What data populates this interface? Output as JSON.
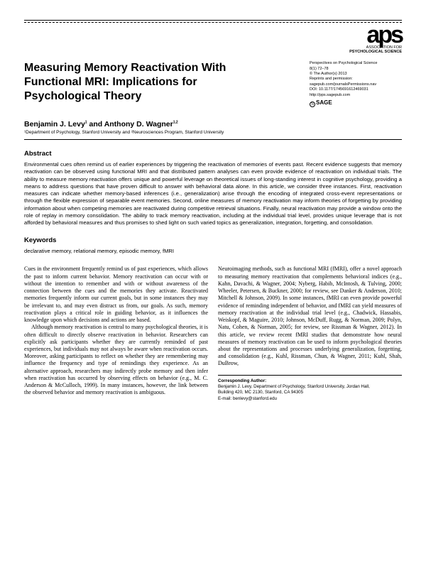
{
  "logo": {
    "main": "aps",
    "line1": "ASSOCIATION FOR",
    "line2": "PSYCHOLOGICAL SCIENCE"
  },
  "title": "Measuring Memory Reactivation With Functional MRI: Implications for Psychological Theory",
  "meta": {
    "journal": "Perspectives on Psychological Science",
    "issue": "8(1) 72–78",
    "copyright": "© The Author(s) 2013",
    "perm1": "Reprints and permission:",
    "perm2": "sagepub.com/journalsPermissions.nav",
    "doi": "DOI: 10.1177/1745691612469031",
    "url": "http://pps.sagepub.com",
    "publisher": "SAGE"
  },
  "authors": "Benjamin J. Levy¹ and Anthony D. Wagner¹,²",
  "affiliation": "¹Department of Psychology, Stanford University and ²Neurosciences Program, Stanford University",
  "abstract_h": "Abstract",
  "abstract": "Environmental cues often remind us of earlier experiences by triggering the reactivation of memories of events past. Recent evidence suggests that memory reactivation can be observed using functional MRI and that distributed pattern analyses can even provide evidence of reactivation on individual trials. The ability to measure memory reactivation offers unique and powerful leverage on theoretical issues of long-standing interest in cognitive psychology, providing a means to address questions that have proven difficult to answer with behavioral data alone. In this article, we consider three instances. First, reactivation measures can indicate whether memory-based inferences (i.e., generalization) arise through the encoding of integrated cross-event representations or through the flexible expression of separable event memories. Second, online measures of memory reactivation may inform theories of forgetting by providing information about when competing memories are reactivated during competitive retrieval situations. Finally, neural reactivation may provide a window onto the role of replay in memory consolidation. The ability to track memory reactivation, including at the individual trial level, provides unique leverage that is not afforded by behavioral measures and thus promises to shed light on such varied topics as generalization, integration, forgetting, and consolidation.",
  "keywords_h": "Keywords",
  "keywords": "declarative memory, relational memory, episodic memory, fMRI",
  "col1": {
    "p1": "Cues in the environment frequently remind us of past experiences, which allows the past to inform current behavior. Memory reactivation can occur with or without the intention to remember and with or without awareness of the connection between the cues and the memories they activate. Reactivated memories frequently inform our current goals, but in some instances they may be irrelevant to, and may even distract us from, our goals. As such, memory reactivation plays a critical role in guiding behavior, as it influences the knowledge upon which decisions and actions are based.",
    "p2": "Although memory reactivation is central to many psychological theories, it is often difficult to directly observe reactivation in behavior. Researchers can explicitly ask participants whether they are currently reminded of past experiences, but individuals may not always be aware when reactivation occurs. Moreover, asking participants to reflect on whether they are remembering may influence the frequency and type of remindings they experience. As an alternative approach, researchers may indirectly probe memory and then infer when reactivation has occurred by observing effects on behavior (e.g., M. C. Anderson & McCulloch, 1999). In many instances, however, the link between the observed behavior and memory reactivation is ambiguous."
  },
  "col2": {
    "p1": "Neuroimaging methods, such as functional MRI (fMRI), offer a novel approach to measuring memory reactivation that complements behavioral indices (e.g., Kahn, Davachi, & Wagner, 2004; Nyberg, Habib, McIntosh, & Tulving, 2000; Wheeler, Petersen, & Buckner, 2000; for review, see Danker & Anderson, 2010; Mitchell & Johnson, 2009). In some instances, fMRI can even provide powerful evidence of reminding independent of behavior, and fMRI can yield measures of memory reactivation at the individual trial level (e.g., Chadwick, Hassabis, Weiskopf, & Maguire, 2010; Johnson, McDuff, Rugg, & Norman, 2009; Polyn, Natu, Cohen, & Norman, 2005; for review, see Rissman & Wagner, 2012). In this article, we review recent fMRI studies that demonstrate how neural measures of memory reactivation can be used to inform psychological theories about the representations and processes underlying generalization, forgetting, and consolidation (e.g., Kuhl, Rissman, Chun, & Wagner, 2011; Kuhl, Shah, DuBrow,"
  },
  "corr": {
    "h": "Corresponding Author:",
    "l1": "Benjamin J. Levy, Department of Psychology, Stanford University, Jordan Hall,",
    "l2": "Building 420, MC 2130, Stanford, CA 94305",
    "l3": "E-mail: benlevy@stanford.edu"
  }
}
